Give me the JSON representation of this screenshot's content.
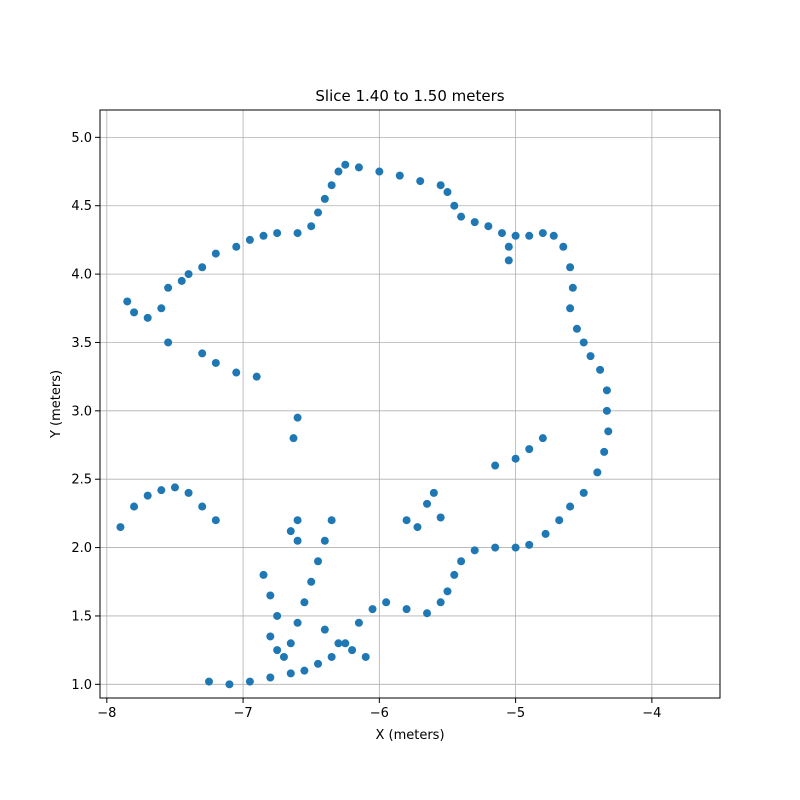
{
  "chart_data": {
    "type": "scatter",
    "title": "Slice 1.40 to 1.50 meters",
    "xlabel": "X (meters)",
    "ylabel": "Y (meters)",
    "xlim": [
      -8.05,
      -3.5
    ],
    "ylim": [
      0.9,
      5.2
    ],
    "xticks": [
      {
        "value": -8,
        "label": "−8"
      },
      {
        "value": -7,
        "label": "−7"
      },
      {
        "value": -6,
        "label": "−6"
      },
      {
        "value": -5,
        "label": "−5"
      },
      {
        "value": -4,
        "label": "−4"
      }
    ],
    "yticks": [
      {
        "value": 1.0,
        "label": "1.0"
      },
      {
        "value": 1.5,
        "label": "1.5"
      },
      {
        "value": 2.0,
        "label": "2.0"
      },
      {
        "value": 2.5,
        "label": "2.5"
      },
      {
        "value": 3.0,
        "label": "3.0"
      },
      {
        "value": 3.5,
        "label": "3.5"
      },
      {
        "value": 4.0,
        "label": "4.0"
      },
      {
        "value": 4.5,
        "label": "4.5"
      },
      {
        "value": 5.0,
        "label": "5.0"
      }
    ],
    "grid": true,
    "legend": "none",
    "point_color": "#1f77b4",
    "series": [
      {
        "points": [
          [
            -7.85,
            3.8
          ],
          [
            -7.8,
            3.72
          ],
          [
            -7.7,
            3.68
          ],
          [
            -7.6,
            3.75
          ],
          [
            -7.55,
            3.9
          ],
          [
            -7.45,
            3.95
          ],
          [
            -7.4,
            4.0
          ],
          [
            -7.3,
            4.05
          ],
          [
            -7.2,
            4.15
          ],
          [
            -7.05,
            4.2
          ],
          [
            -6.95,
            4.25
          ],
          [
            -6.85,
            4.28
          ],
          [
            -6.75,
            4.3
          ],
          [
            -6.6,
            4.3
          ],
          [
            -6.5,
            4.35
          ],
          [
            -6.45,
            4.45
          ],
          [
            -6.4,
            4.55
          ],
          [
            -6.35,
            4.65
          ],
          [
            -6.3,
            4.75
          ],
          [
            -6.25,
            4.8
          ],
          [
            -6.15,
            4.78
          ],
          [
            -6.0,
            4.75
          ],
          [
            -5.85,
            4.72
          ],
          [
            -5.7,
            4.68
          ],
          [
            -5.55,
            4.65
          ],
          [
            -5.5,
            4.6
          ],
          [
            -5.45,
            4.5
          ],
          [
            -5.4,
            4.42
          ],
          [
            -5.3,
            4.38
          ],
          [
            -5.2,
            4.35
          ],
          [
            -5.1,
            4.3
          ],
          [
            -5.0,
            4.28
          ],
          [
            -4.9,
            4.28
          ],
          [
            -4.8,
            4.3
          ],
          [
            -4.72,
            4.28
          ],
          [
            -4.65,
            4.2
          ],
          [
            -4.6,
            4.05
          ],
          [
            -4.58,
            3.9
          ],
          [
            -4.6,
            3.75
          ],
          [
            -4.55,
            3.6
          ],
          [
            -4.5,
            3.5
          ],
          [
            -4.45,
            3.4
          ],
          [
            -4.38,
            3.3
          ],
          [
            -4.33,
            3.15
          ],
          [
            -4.33,
            3.0
          ],
          [
            -4.32,
            2.85
          ],
          [
            -4.35,
            2.7
          ],
          [
            -4.4,
            2.55
          ],
          [
            -4.5,
            2.4
          ],
          [
            -4.6,
            2.3
          ],
          [
            -4.68,
            2.2
          ],
          [
            -4.78,
            2.1
          ],
          [
            -4.9,
            2.02
          ],
          [
            -5.0,
            2.0
          ],
          [
            -5.15,
            2.0
          ],
          [
            -5.3,
            1.98
          ],
          [
            -5.4,
            1.9
          ],
          [
            -5.45,
            1.8
          ],
          [
            -5.5,
            1.68
          ],
          [
            -5.55,
            1.6
          ],
          [
            -5.65,
            1.52
          ],
          [
            -5.8,
            1.55
          ],
          [
            -5.95,
            1.6
          ],
          [
            -6.05,
            1.55
          ],
          [
            -6.15,
            1.45
          ],
          [
            -6.25,
            1.3
          ],
          [
            -6.35,
            1.2
          ],
          [
            -6.45,
            1.15
          ],
          [
            -6.55,
            1.1
          ],
          [
            -6.65,
            1.08
          ],
          [
            -6.8,
            1.05
          ],
          [
            -6.95,
            1.02
          ],
          [
            -7.1,
            1.0
          ],
          [
            -7.25,
            1.02
          ],
          [
            -5.05,
            4.2
          ],
          [
            -5.05,
            4.1
          ],
          [
            -7.55,
            3.5
          ],
          [
            -7.3,
            3.42
          ],
          [
            -7.2,
            3.35
          ],
          [
            -7.05,
            3.28
          ],
          [
            -6.9,
            3.25
          ],
          [
            -6.6,
            2.95
          ],
          [
            -6.63,
            2.8
          ],
          [
            -5.15,
            2.6
          ],
          [
            -5.0,
            2.65
          ],
          [
            -4.9,
            2.72
          ],
          [
            -4.8,
            2.8
          ],
          [
            -5.72,
            2.15
          ],
          [
            -5.8,
            2.2
          ],
          [
            -5.65,
            2.32
          ],
          [
            -5.6,
            2.4
          ],
          [
            -5.55,
            2.22
          ],
          [
            -7.9,
            2.15
          ],
          [
            -7.8,
            2.3
          ],
          [
            -7.7,
            2.38
          ],
          [
            -7.6,
            2.42
          ],
          [
            -7.5,
            2.44
          ],
          [
            -7.4,
            2.4
          ],
          [
            -7.3,
            2.3
          ],
          [
            -7.2,
            2.2
          ],
          [
            -6.6,
            2.2
          ],
          [
            -6.65,
            2.12
          ],
          [
            -6.6,
            2.05
          ],
          [
            -6.35,
            2.2
          ],
          [
            -6.4,
            2.05
          ],
          [
            -6.45,
            1.9
          ],
          [
            -6.5,
            1.75
          ],
          [
            -6.55,
            1.6
          ],
          [
            -6.6,
            1.45
          ],
          [
            -6.65,
            1.3
          ],
          [
            -6.7,
            1.2
          ],
          [
            -6.85,
            1.8
          ],
          [
            -6.8,
            1.65
          ],
          [
            -6.75,
            1.5
          ],
          [
            -6.8,
            1.35
          ],
          [
            -6.75,
            1.25
          ],
          [
            -6.4,
            1.4
          ],
          [
            -6.3,
            1.3
          ],
          [
            -6.2,
            1.25
          ],
          [
            -6.1,
            1.2
          ]
        ]
      }
    ]
  }
}
